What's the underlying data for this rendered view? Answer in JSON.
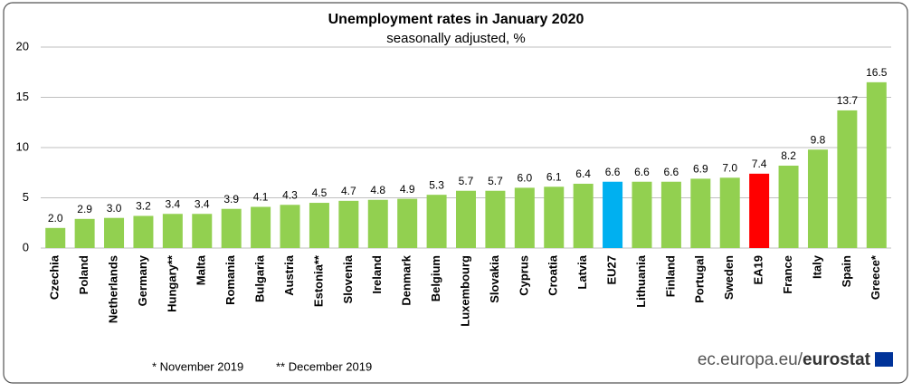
{
  "chart_data": {
    "type": "bar",
    "title": "Unemployment rates in January 2020",
    "subtitle": "seasonally adjusted, %",
    "categories": [
      "Czechia",
      "Poland",
      "Netherlands",
      "Germany",
      "Hungary**",
      "Malta",
      "Romania",
      "Bulgaria",
      "Austria",
      "Estonia**",
      "Slovenia",
      "Ireland",
      "Denmark",
      "Belgium",
      "Luxembourg",
      "Slovakia",
      "Cyprus",
      "Croatia",
      "Latvia",
      "EU27",
      "Lithuania",
      "Finland",
      "Portugal",
      "Sweden",
      "EA19",
      "France",
      "Italy",
      "Spain",
      "Greece*"
    ],
    "values": [
      2.0,
      2.9,
      3.0,
      3.2,
      3.4,
      3.4,
      3.9,
      4.1,
      4.3,
      4.5,
      4.7,
      4.8,
      4.9,
      5.3,
      5.7,
      5.7,
      6.0,
      6.1,
      6.4,
      6.6,
      6.6,
      6.6,
      6.9,
      7.0,
      7.4,
      8.2,
      9.8,
      13.7,
      16.5
    ],
    "value_labels": [
      "2.0",
      "2.9",
      "3.0",
      "3.2",
      "3.4",
      "3.4",
      "3.9",
      "4.1",
      "4.3",
      "4.5",
      "4.7",
      "4.8",
      "4.9",
      "5.3",
      "5.7",
      "5.7",
      "6.0",
      "6.1",
      "6.4",
      "6.6",
      "6.6",
      "6.6",
      "6.9",
      "7.0",
      "7.4",
      "8.2",
      "9.8",
      "13.7",
      "16.5"
    ],
    "colors": [
      "#92d050",
      "#92d050",
      "#92d050",
      "#92d050",
      "#92d050",
      "#92d050",
      "#92d050",
      "#92d050",
      "#92d050",
      "#92d050",
      "#92d050",
      "#92d050",
      "#92d050",
      "#92d050",
      "#92d050",
      "#92d050",
      "#92d050",
      "#92d050",
      "#92d050",
      "#00b0f0",
      "#92d050",
      "#92d050",
      "#92d050",
      "#92d050",
      "#ff0000",
      "#92d050",
      "#92d050",
      "#92d050",
      "#92d050"
    ],
    "ylim": [
      0,
      20
    ],
    "yticks": [
      0,
      5,
      10,
      15,
      20
    ],
    "grid": true,
    "footnotes": [
      "*  November 2019",
      "** December 2019"
    ],
    "source_domain": "ec.europa.eu/",
    "source_brand": "eurostat"
  }
}
